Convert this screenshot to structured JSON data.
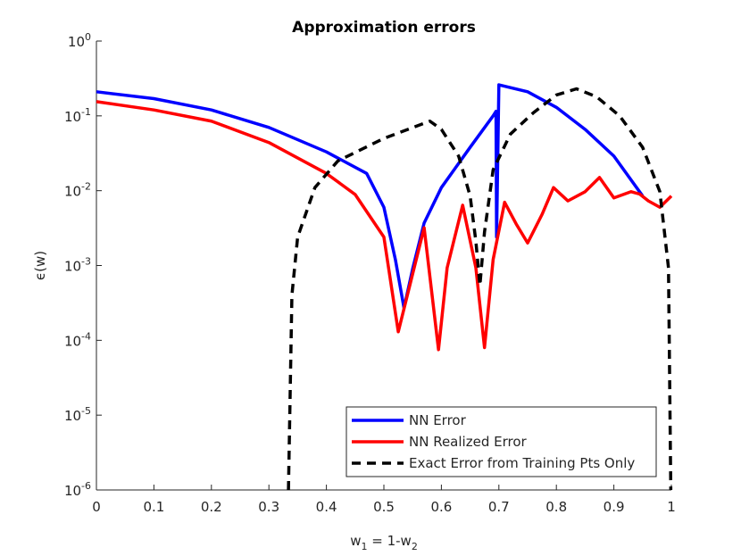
{
  "chart_data": {
    "type": "line",
    "title": "Approximation errors",
    "xlabel": "w_1 = 1-w_2",
    "ylabel": "ϵ(w)",
    "yscale": "log",
    "grid": false,
    "legend": "southeast",
    "xlim": [
      0,
      1
    ],
    "xticks": [
      0,
      0.1,
      0.2,
      0.3,
      0.4,
      0.5,
      0.6,
      0.7,
      0.8,
      0.9,
      1
    ],
    "ylim": [
      1e-06,
      1
    ],
    "yticks": [
      {
        "value": 1e-06,
        "label": "10^-6"
      },
      {
        "value": 1e-05,
        "label": "10^-5"
      },
      {
        "value": 0.0001,
        "label": "10^-4"
      },
      {
        "value": 0.001,
        "label": "10^-3"
      },
      {
        "value": 0.01,
        "label": "10^-2"
      },
      {
        "value": 0.1,
        "label": "10^-1"
      },
      {
        "value": 1,
        "label": "10^0"
      }
    ],
    "series": [
      {
        "name": "NN Error",
        "color": "#0000ff",
        "dash": false,
        "x": [
          0,
          0.1,
          0.2,
          0.3,
          0.4,
          0.47,
          0.5,
          0.52,
          0.535,
          0.55,
          0.57,
          0.6,
          0.65,
          0.69,
          0.695,
          0.696,
          0.7,
          0.75,
          0.8,
          0.85,
          0.9,
          0.95
        ],
        "values": [
          0.21,
          0.17,
          0.12,
          0.07,
          0.033,
          0.017,
          0.006,
          0.0012,
          0.00027,
          0.0009,
          0.0037,
          0.011,
          0.038,
          0.1,
          0.115,
          0.0024,
          0.26,
          0.21,
          0.13,
          0.066,
          0.029,
          0.0085
        ]
      },
      {
        "name": "NN Realized Error",
        "color": "#ff0000",
        "dash": false,
        "x": [
          0,
          0.1,
          0.2,
          0.3,
          0.4,
          0.45,
          0.5,
          0.525,
          0.545,
          0.57,
          0.595,
          0.61,
          0.637,
          0.66,
          0.675,
          0.69,
          0.71,
          0.73,
          0.75,
          0.775,
          0.795,
          0.82,
          0.85,
          0.875,
          0.9,
          0.93,
          0.945,
          0.96,
          0.98,
          1
        ],
        "values": [
          0.155,
          0.12,
          0.085,
          0.044,
          0.017,
          0.0089,
          0.0024,
          0.00013,
          0.00054,
          0.0032,
          7.5e-05,
          0.00093,
          0.0064,
          0.00093,
          8e-05,
          0.0012,
          0.007,
          0.0036,
          0.002,
          0.0048,
          0.011,
          0.0073,
          0.0097,
          0.015,
          0.008,
          0.0097,
          0.009,
          0.0073,
          0.006,
          0.0085
        ]
      },
      {
        "name": "Exact Error from Training Pts Only",
        "color": "#000000",
        "dash": true,
        "x": [
          0.334,
          0.34,
          0.35,
          0.38,
          0.42,
          0.5,
          0.58,
          0.6,
          0.63,
          0.65,
          0.66,
          0.667,
          0.675,
          0.69,
          0.72,
          0.76,
          0.8,
          0.835,
          0.87,
          0.91,
          0.95,
          0.98,
          0.995,
          0.999
        ],
        "values": [
          1e-06,
          0.0004,
          0.0024,
          0.011,
          0.025,
          0.05,
          0.085,
          0.066,
          0.029,
          0.0085,
          0.0021,
          0.00054,
          0.0028,
          0.019,
          0.057,
          0.11,
          0.19,
          0.23,
          0.18,
          0.1,
          0.038,
          0.0097,
          0.00093,
          1e-06
        ]
      }
    ]
  }
}
